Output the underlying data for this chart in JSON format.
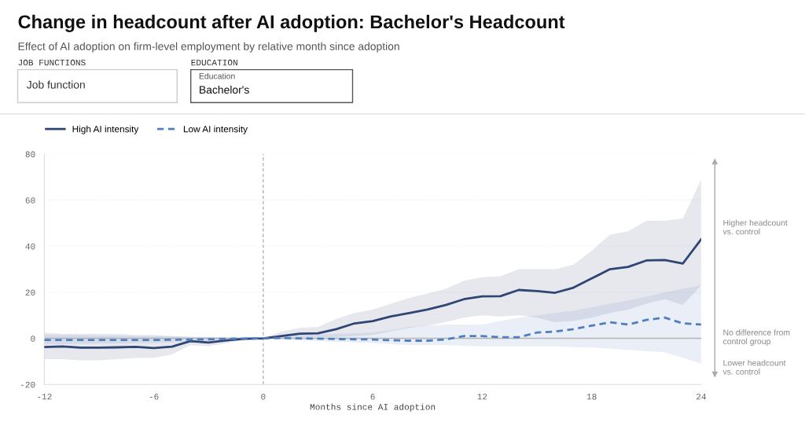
{
  "chart_data": {
    "type": "line",
    "title": "Change in headcount after AI adoption: Bachelor's Headcount",
    "subtitle": "Effect of AI adoption on firm-level employment by relative month since adoption",
    "xlabel": "Months since AI adoption",
    "x": [
      -12,
      -11,
      -10,
      -9,
      -8,
      -7,
      -6,
      -5,
      -4,
      -3,
      -2,
      -1,
      0,
      1,
      2,
      3,
      4,
      5,
      6,
      7,
      8,
      9,
      10,
      11,
      12,
      13,
      14,
      15,
      16,
      17,
      18,
      19,
      20,
      21,
      22,
      23,
      24
    ],
    "series": [
      {
        "name": "High AI intensity",
        "color": "#2f4574",
        "line_style": "solid",
        "values": [
          -3.8,
          -3.5,
          -4,
          -4,
          -3.9,
          -3.7,
          -4.2,
          -3.6,
          -1.2,
          -1.8,
          -0.9,
          -0.2,
          0,
          1,
          2,
          2.2,
          4,
          6.5,
          7.5,
          9.5,
          11,
          12.5,
          14.5,
          17,
          18.2,
          18.3,
          21,
          20.5,
          19.8,
          22,
          26,
          30,
          31,
          33.8,
          34,
          32.5,
          43
        ],
        "upper": [
          2.5,
          2,
          2,
          2,
          2,
          1.5,
          1.5,
          1,
          0.5,
          0.5,
          0,
          0,
          0,
          3,
          4.5,
          5,
          8.5,
          11,
          12.5,
          15,
          17.5,
          19.5,
          21.5,
          25,
          26.5,
          27,
          30,
          30,
          30,
          32,
          38,
          45,
          46.5,
          51,
          51,
          52,
          69
        ],
        "lower": [
          -9,
          -9,
          -9.5,
          -9.5,
          -9,
          -8.5,
          -8.5,
          -7,
          -3,
          -3.5,
          -2,
          -0.5,
          0,
          0,
          0.5,
          0.5,
          0.5,
          1,
          1.5,
          3,
          4.5,
          5.5,
          7,
          9,
          10,
          9.5,
          10,
          9,
          7,
          7.5,
          9,
          11,
          12.5,
          15,
          17,
          14.5,
          23
        ]
      },
      {
        "name": "Low AI intensity",
        "color": "#4f7fbf",
        "line_style": "dashed",
        "values": [
          -0.7,
          -0.7,
          -0.7,
          -0.7,
          -0.7,
          -0.7,
          -0.7,
          -0.6,
          -0.5,
          -0.4,
          -0.2,
          -0.1,
          0,
          0.2,
          0,
          -0.1,
          -0.3,
          -0.4,
          -0.5,
          -0.8,
          -1,
          -1,
          -0.5,
          1,
          1,
          0.5,
          0.5,
          2.5,
          3,
          4,
          5.5,
          7,
          6,
          8,
          9,
          6.5,
          6
        ],
        "upper": [
          1.5,
          1.5,
          1.5,
          1.2,
          1.2,
          1,
          1,
          1,
          0.8,
          0.6,
          0.5,
          0.2,
          0,
          0.8,
          1.5,
          1.8,
          2,
          2.2,
          2.5,
          3.5,
          5,
          5.5,
          6,
          6,
          6,
          7.5,
          9,
          10,
          11,
          12,
          13.5,
          15,
          16.5,
          18,
          20,
          21.5,
          23
        ],
        "lower": [
          -2.5,
          -2.5,
          -2.4,
          -2.3,
          -2.2,
          -2.1,
          -2,
          -1.8,
          -1.2,
          -1,
          -0.5,
          -0.2,
          0,
          -0.5,
          -1,
          -1.2,
          -1.5,
          -1.8,
          -2,
          -2.5,
          -3,
          -3,
          -3,
          -3.2,
          -3.5,
          -3.5,
          -3.5,
          -3.5,
          -3.5,
          -3.8,
          -4,
          -4.5,
          -5,
          -5.5,
          -6,
          -8.5,
          -11
        ]
      }
    ],
    "xlim": [
      -12,
      24
    ],
    "xticks": [
      -12,
      -6,
      0,
      6,
      12,
      18,
      24
    ],
    "ylim": [
      -20,
      80
    ],
    "yticks": [
      -20,
      0,
      20,
      40,
      60,
      80
    ],
    "grid": "y",
    "legend": "top left",
    "ref_lines": [
      {
        "axis": "y",
        "value": 0,
        "color": "#b4b4b4",
        "line_style": "solid"
      },
      {
        "axis": "x",
        "value": 0,
        "color": "#b4b4b4",
        "line_style": "dashed"
      }
    ],
    "annotations": [
      "JOB FUNCTIONS",
      "Job function",
      "EDUCATION",
      "Education",
      "Bachelor's",
      "Higher headcount\nvs. control",
      "No difference from\ncontrol group",
      "Lower headcount\nvs. control"
    ]
  }
}
